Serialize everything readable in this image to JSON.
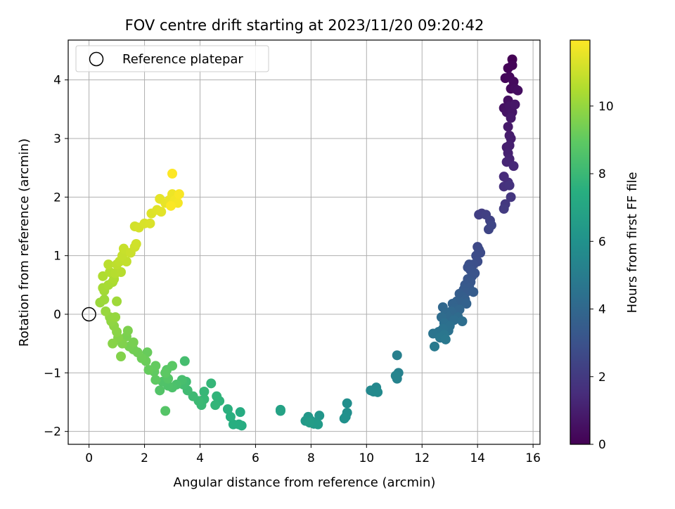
{
  "chart_data": {
    "type": "scatter",
    "title": "FOV centre drift starting at 2023/11/20 09:20:42",
    "xlabel": "Angular distance from reference (arcmin)",
    "ylabel": "Rotation from reference (arcmin)",
    "xlim": [
      -0.75,
      16.25
    ],
    "ylim": [
      -2.22,
      4.68
    ],
    "xticks": [
      0,
      2,
      4,
      6,
      8,
      10,
      12,
      14,
      16
    ],
    "yticks": [
      -2,
      -1,
      0,
      1,
      2,
      3,
      4
    ],
    "grid": true,
    "legend": {
      "position": "top-left",
      "entries": [
        "Reference platepar"
      ]
    },
    "reference_point": {
      "x": 0,
      "y": 0
    },
    "colorbar": {
      "label": "Hours from first FF file",
      "colormap": "viridis",
      "range": [
        0,
        11.95
      ],
      "ticks": [
        0,
        2,
        4,
        6,
        8,
        10
      ]
    },
    "points": [
      {
        "x": 15.25,
        "y": 4.35,
        "c": 0.0
      },
      {
        "x": 15.1,
        "y": 4.2,
        "c": 0.1
      },
      {
        "x": 15.25,
        "y": 4.25,
        "c": 0.15
      },
      {
        "x": 15.0,
        "y": 4.03,
        "c": 0.2
      },
      {
        "x": 15.15,
        "y": 4.05,
        "c": 0.25
      },
      {
        "x": 15.2,
        "y": 3.85,
        "c": 0.3
      },
      {
        "x": 15.3,
        "y": 3.97,
        "c": 0.35
      },
      {
        "x": 15.35,
        "y": 3.85,
        "c": 0.4
      },
      {
        "x": 15.45,
        "y": 3.82,
        "c": 0.45
      },
      {
        "x": 15.1,
        "y": 3.65,
        "c": 0.5
      },
      {
        "x": 14.95,
        "y": 3.52,
        "c": 0.55
      },
      {
        "x": 15.05,
        "y": 3.45,
        "c": 0.6
      },
      {
        "x": 15.15,
        "y": 3.55,
        "c": 0.65
      },
      {
        "x": 15.25,
        "y": 3.45,
        "c": 0.7
      },
      {
        "x": 15.35,
        "y": 3.58,
        "c": 0.75
      },
      {
        "x": 15.2,
        "y": 3.35,
        "c": 0.8
      },
      {
        "x": 15.1,
        "y": 3.2,
        "c": 0.85
      },
      {
        "x": 15.15,
        "y": 3.05,
        "c": 0.9
      },
      {
        "x": 15.2,
        "y": 3.0,
        "c": 0.95
      },
      {
        "x": 15.05,
        "y": 2.85,
        "c": 1.0
      },
      {
        "x": 15.15,
        "y": 2.88,
        "c": 1.05
      },
      {
        "x": 15.1,
        "y": 2.75,
        "c": 1.1
      },
      {
        "x": 15.15,
        "y": 2.65,
        "c": 1.2
      },
      {
        "x": 15.05,
        "y": 2.6,
        "c": 1.25
      },
      {
        "x": 15.3,
        "y": 2.53,
        "c": 1.35
      },
      {
        "x": 14.95,
        "y": 2.35,
        "c": 1.45
      },
      {
        "x": 15.1,
        "y": 2.25,
        "c": 1.55
      },
      {
        "x": 14.95,
        "y": 2.18,
        "c": 1.65
      },
      {
        "x": 15.15,
        "y": 2.2,
        "c": 1.75
      },
      {
        "x": 15.2,
        "y": 2.0,
        "c": 1.85
      },
      {
        "x": 15.0,
        "y": 1.88,
        "c": 1.95
      },
      {
        "x": 14.95,
        "y": 1.8,
        "c": 2.05
      },
      {
        "x": 14.15,
        "y": 1.72,
        "c": 2.15
      },
      {
        "x": 14.05,
        "y": 1.7,
        "c": 2.2
      },
      {
        "x": 14.3,
        "y": 1.7,
        "c": 2.25
      },
      {
        "x": 14.45,
        "y": 1.6,
        "c": 2.35
      },
      {
        "x": 14.4,
        "y": 1.45,
        "c": 2.45
      },
      {
        "x": 14.5,
        "y": 1.52,
        "c": 2.5
      },
      {
        "x": 14.0,
        "y": 1.15,
        "c": 2.6
      },
      {
        "x": 14.05,
        "y": 1.1,
        "c": 2.65
      },
      {
        "x": 14.1,
        "y": 1.05,
        "c": 2.7
      },
      {
        "x": 13.95,
        "y": 1.0,
        "c": 2.75
      },
      {
        "x": 14.0,
        "y": 0.9,
        "c": 2.8
      },
      {
        "x": 13.85,
        "y": 0.85,
        "c": 2.85
      },
      {
        "x": 13.7,
        "y": 0.85,
        "c": 2.9
      },
      {
        "x": 13.65,
        "y": 0.8,
        "c": 2.95
      },
      {
        "x": 13.75,
        "y": 0.75,
        "c": 3.0
      },
      {
        "x": 13.9,
        "y": 0.7,
        "c": 3.05
      },
      {
        "x": 13.8,
        "y": 0.65,
        "c": 3.1
      },
      {
        "x": 13.65,
        "y": 0.6,
        "c": 3.15
      },
      {
        "x": 13.75,
        "y": 0.55,
        "c": 3.2
      },
      {
        "x": 13.55,
        "y": 0.5,
        "c": 3.25
      },
      {
        "x": 13.7,
        "y": 0.45,
        "c": 3.3
      },
      {
        "x": 13.5,
        "y": 0.42,
        "c": 3.35
      },
      {
        "x": 13.6,
        "y": 0.38,
        "c": 3.4
      },
      {
        "x": 13.85,
        "y": 0.38,
        "c": 3.45
      },
      {
        "x": 13.35,
        "y": 0.35,
        "c": 3.5
      },
      {
        "x": 13.45,
        "y": 0.3,
        "c": 3.55
      },
      {
        "x": 13.55,
        "y": 0.25,
        "c": 3.6
      },
      {
        "x": 13.25,
        "y": 0.22,
        "c": 3.65
      },
      {
        "x": 13.4,
        "y": 0.2,
        "c": 3.7
      },
      {
        "x": 13.6,
        "y": 0.18,
        "c": 3.75
      },
      {
        "x": 13.1,
        "y": 0.18,
        "c": 3.8
      },
      {
        "x": 13.2,
        "y": 0.1,
        "c": 3.85
      },
      {
        "x": 13.35,
        "y": 0.08,
        "c": 3.9
      },
      {
        "x": 12.75,
        "y": 0.12,
        "c": 3.95
      },
      {
        "x": 13.05,
        "y": 0.05,
        "c": 4.0
      },
      {
        "x": 12.85,
        "y": 0.02,
        "c": 4.05
      },
      {
        "x": 12.95,
        "y": -0.05,
        "c": 4.1
      },
      {
        "x": 13.3,
        "y": -0.05,
        "c": 4.15
      },
      {
        "x": 12.7,
        "y": -0.05,
        "c": 4.2
      },
      {
        "x": 13.15,
        "y": -0.1,
        "c": 4.25
      },
      {
        "x": 13.45,
        "y": -0.12,
        "c": 4.3
      },
      {
        "x": 12.8,
        "y": -0.15,
        "c": 4.35
      },
      {
        "x": 13.0,
        "y": -0.2,
        "c": 4.4
      },
      {
        "x": 12.95,
        "y": -0.28,
        "c": 4.45
      },
      {
        "x": 12.75,
        "y": -0.25,
        "c": 4.5
      },
      {
        "x": 12.6,
        "y": -0.3,
        "c": 4.55
      },
      {
        "x": 12.4,
        "y": -0.33,
        "c": 4.6
      },
      {
        "x": 12.8,
        "y": -0.35,
        "c": 4.65
      },
      {
        "x": 12.65,
        "y": -0.4,
        "c": 4.7
      },
      {
        "x": 12.85,
        "y": -0.43,
        "c": 4.75
      },
      {
        "x": 12.45,
        "y": -0.55,
        "c": 4.85
      },
      {
        "x": 11.1,
        "y": -0.7,
        "c": 5.1
      },
      {
        "x": 11.15,
        "y": -1.0,
        "c": 5.2
      },
      {
        "x": 11.1,
        "y": -1.1,
        "c": 5.3
      },
      {
        "x": 11.05,
        "y": -1.05,
        "c": 5.35
      },
      {
        "x": 10.35,
        "y": -1.25,
        "c": 5.5
      },
      {
        "x": 10.15,
        "y": -1.3,
        "c": 5.55
      },
      {
        "x": 10.25,
        "y": -1.32,
        "c": 5.6
      },
      {
        "x": 10.4,
        "y": -1.33,
        "c": 5.65
      },
      {
        "x": 9.3,
        "y": -1.52,
        "c": 5.85
      },
      {
        "x": 9.3,
        "y": -1.68,
        "c": 5.9
      },
      {
        "x": 9.25,
        "y": -1.75,
        "c": 5.95
      },
      {
        "x": 9.2,
        "y": -1.78,
        "c": 6.0
      },
      {
        "x": 8.3,
        "y": -1.73,
        "c": 6.2
      },
      {
        "x": 8.15,
        "y": -1.85,
        "c": 6.25
      },
      {
        "x": 7.9,
        "y": -1.75,
        "c": 6.3
      },
      {
        "x": 8.0,
        "y": -1.82,
        "c": 6.35
      },
      {
        "x": 7.8,
        "y": -1.82,
        "c": 6.4
      },
      {
        "x": 8.1,
        "y": -1.87,
        "c": 6.45
      },
      {
        "x": 8.25,
        "y": -1.88,
        "c": 6.5
      },
      {
        "x": 7.95,
        "y": -1.85,
        "c": 6.55
      },
      {
        "x": 6.9,
        "y": -1.63,
        "c": 6.8
      },
      {
        "x": 6.9,
        "y": -1.65,
        "c": 6.85
      },
      {
        "x": 5.45,
        "y": -1.67,
        "c": 7.3
      },
      {
        "x": 5.5,
        "y": -1.9,
        "c": 7.35
      },
      {
        "x": 5.4,
        "y": -1.88,
        "c": 7.4
      },
      {
        "x": 5.2,
        "y": -1.88,
        "c": 7.45
      },
      {
        "x": 5.1,
        "y": -1.75,
        "c": 7.5
      },
      {
        "x": 5.0,
        "y": -1.62,
        "c": 7.55
      },
      {
        "x": 4.7,
        "y": -1.48,
        "c": 7.7
      },
      {
        "x": 4.6,
        "y": -1.4,
        "c": 7.75
      },
      {
        "x": 4.55,
        "y": -1.55,
        "c": 7.8
      },
      {
        "x": 4.4,
        "y": -1.18,
        "c": 7.85
      },
      {
        "x": 4.15,
        "y": -1.32,
        "c": 7.9
      },
      {
        "x": 4.15,
        "y": -1.45,
        "c": 7.95
      },
      {
        "x": 4.05,
        "y": -1.55,
        "c": 8.0
      },
      {
        "x": 3.95,
        "y": -1.48,
        "c": 8.05
      },
      {
        "x": 3.75,
        "y": -1.4,
        "c": 8.1
      },
      {
        "x": 3.55,
        "y": -1.3,
        "c": 8.15
      },
      {
        "x": 3.5,
        "y": -1.15,
        "c": 8.2
      },
      {
        "x": 3.4,
        "y": -1.2,
        "c": 8.25
      },
      {
        "x": 3.45,
        "y": -0.8,
        "c": 8.3
      },
      {
        "x": 3.35,
        "y": -1.12,
        "c": 8.35
      },
      {
        "x": 3.15,
        "y": -1.2,
        "c": 8.45
      },
      {
        "x": 3.0,
        "y": -1.25,
        "c": 8.5
      },
      {
        "x": 2.85,
        "y": -1.22,
        "c": 8.55
      },
      {
        "x": 2.65,
        "y": -1.15,
        "c": 8.6
      },
      {
        "x": 2.55,
        "y": -1.3,
        "c": 8.65
      },
      {
        "x": 2.75,
        "y": -1.65,
        "c": 8.7
      },
      {
        "x": 2.85,
        "y": -1.1,
        "c": 8.75
      },
      {
        "x": 2.8,
        "y": -0.95,
        "c": 8.8
      },
      {
        "x": 3.0,
        "y": -0.88,
        "c": 8.85
      },
      {
        "x": 2.75,
        "y": -1.0,
        "c": 8.9
      },
      {
        "x": 2.4,
        "y": -1.12,
        "c": 8.95
      },
      {
        "x": 2.35,
        "y": -0.98,
        "c": 9.0
      },
      {
        "x": 2.4,
        "y": -0.88,
        "c": 9.05
      },
      {
        "x": 2.15,
        "y": -0.95,
        "c": 9.1
      },
      {
        "x": 2.1,
        "y": -0.65,
        "c": 9.15
      },
      {
        "x": 2.05,
        "y": -0.8,
        "c": 9.2
      },
      {
        "x": 1.9,
        "y": -0.75,
        "c": 9.25
      },
      {
        "x": 1.75,
        "y": -0.65,
        "c": 9.3
      },
      {
        "x": 1.6,
        "y": -0.6,
        "c": 9.35
      },
      {
        "x": 1.45,
        "y": -0.55,
        "c": 9.4
      },
      {
        "x": 1.6,
        "y": -0.48,
        "c": 9.45
      },
      {
        "x": 1.35,
        "y": -0.38,
        "c": 9.5
      },
      {
        "x": 1.4,
        "y": -0.28,
        "c": 9.55
      },
      {
        "x": 1.2,
        "y": -0.5,
        "c": 9.6
      },
      {
        "x": 1.15,
        "y": -0.72,
        "c": 9.65
      },
      {
        "x": 1.05,
        "y": -0.4,
        "c": 9.7
      },
      {
        "x": 0.85,
        "y": -0.5,
        "c": 9.75
      },
      {
        "x": 1.0,
        "y": -0.3,
        "c": 9.8
      },
      {
        "x": 0.9,
        "y": -0.2,
        "c": 9.85
      },
      {
        "x": 0.8,
        "y": -0.12,
        "c": 9.9
      },
      {
        "x": 0.75,
        "y": -0.05,
        "c": 9.95
      },
      {
        "x": 0.95,
        "y": -0.05,
        "c": 10.0
      },
      {
        "x": 0.6,
        "y": 0.05,
        "c": 10.05
      },
      {
        "x": 0.4,
        "y": 0.2,
        "c": 10.1
      },
      {
        "x": 0.55,
        "y": 0.25,
        "c": 10.15
      },
      {
        "x": 1.0,
        "y": 0.22,
        "c": 10.2
      },
      {
        "x": 0.55,
        "y": 0.4,
        "c": 10.25
      },
      {
        "x": 0.5,
        "y": 0.45,
        "c": 10.3
      },
      {
        "x": 0.7,
        "y": 0.5,
        "c": 10.35
      },
      {
        "x": 0.85,
        "y": 0.55,
        "c": 10.4
      },
      {
        "x": 0.9,
        "y": 0.6,
        "c": 10.45
      },
      {
        "x": 0.5,
        "y": 0.65,
        "c": 10.5
      },
      {
        "x": 0.75,
        "y": 0.72,
        "c": 10.55
      },
      {
        "x": 0.95,
        "y": 0.7,
        "c": 10.6
      },
      {
        "x": 1.15,
        "y": 0.72,
        "c": 10.65
      },
      {
        "x": 0.7,
        "y": 0.85,
        "c": 10.7
      },
      {
        "x": 1.0,
        "y": 0.85,
        "c": 10.75
      },
      {
        "x": 1.1,
        "y": 0.9,
        "c": 10.8
      },
      {
        "x": 1.35,
        "y": 0.9,
        "c": 10.85
      },
      {
        "x": 1.2,
        "y": 1.0,
        "c": 10.9
      },
      {
        "x": 1.25,
        "y": 1.12,
        "c": 10.95
      },
      {
        "x": 1.5,
        "y": 1.05,
        "c": 11.0
      },
      {
        "x": 1.65,
        "y": 1.15,
        "c": 11.05
      },
      {
        "x": 1.7,
        "y": 1.2,
        "c": 11.1
      },
      {
        "x": 1.65,
        "y": 1.5,
        "c": 11.15
      },
      {
        "x": 1.8,
        "y": 1.48,
        "c": 11.2
      },
      {
        "x": 2.0,
        "y": 1.55,
        "c": 11.25
      },
      {
        "x": 2.2,
        "y": 1.55,
        "c": 11.3
      },
      {
        "x": 2.25,
        "y": 1.72,
        "c": 11.35
      },
      {
        "x": 2.45,
        "y": 1.78,
        "c": 11.4
      },
      {
        "x": 2.6,
        "y": 1.75,
        "c": 11.45
      },
      {
        "x": 2.55,
        "y": 1.97,
        "c": 11.5
      },
      {
        "x": 2.75,
        "y": 1.9,
        "c": 11.55
      },
      {
        "x": 2.9,
        "y": 1.95,
        "c": 11.6
      },
      {
        "x": 3.0,
        "y": 2.05,
        "c": 11.65
      },
      {
        "x": 3.05,
        "y": 1.9,
        "c": 11.7
      },
      {
        "x": 3.1,
        "y": 1.95,
        "c": 11.75
      },
      {
        "x": 3.2,
        "y": 1.9,
        "c": 11.8
      },
      {
        "x": 3.25,
        "y": 2.05,
        "c": 11.85
      },
      {
        "x": 2.95,
        "y": 1.85,
        "c": 11.9
      },
      {
        "x": 3.0,
        "y": 2.4,
        "c": 11.95
      }
    ]
  }
}
